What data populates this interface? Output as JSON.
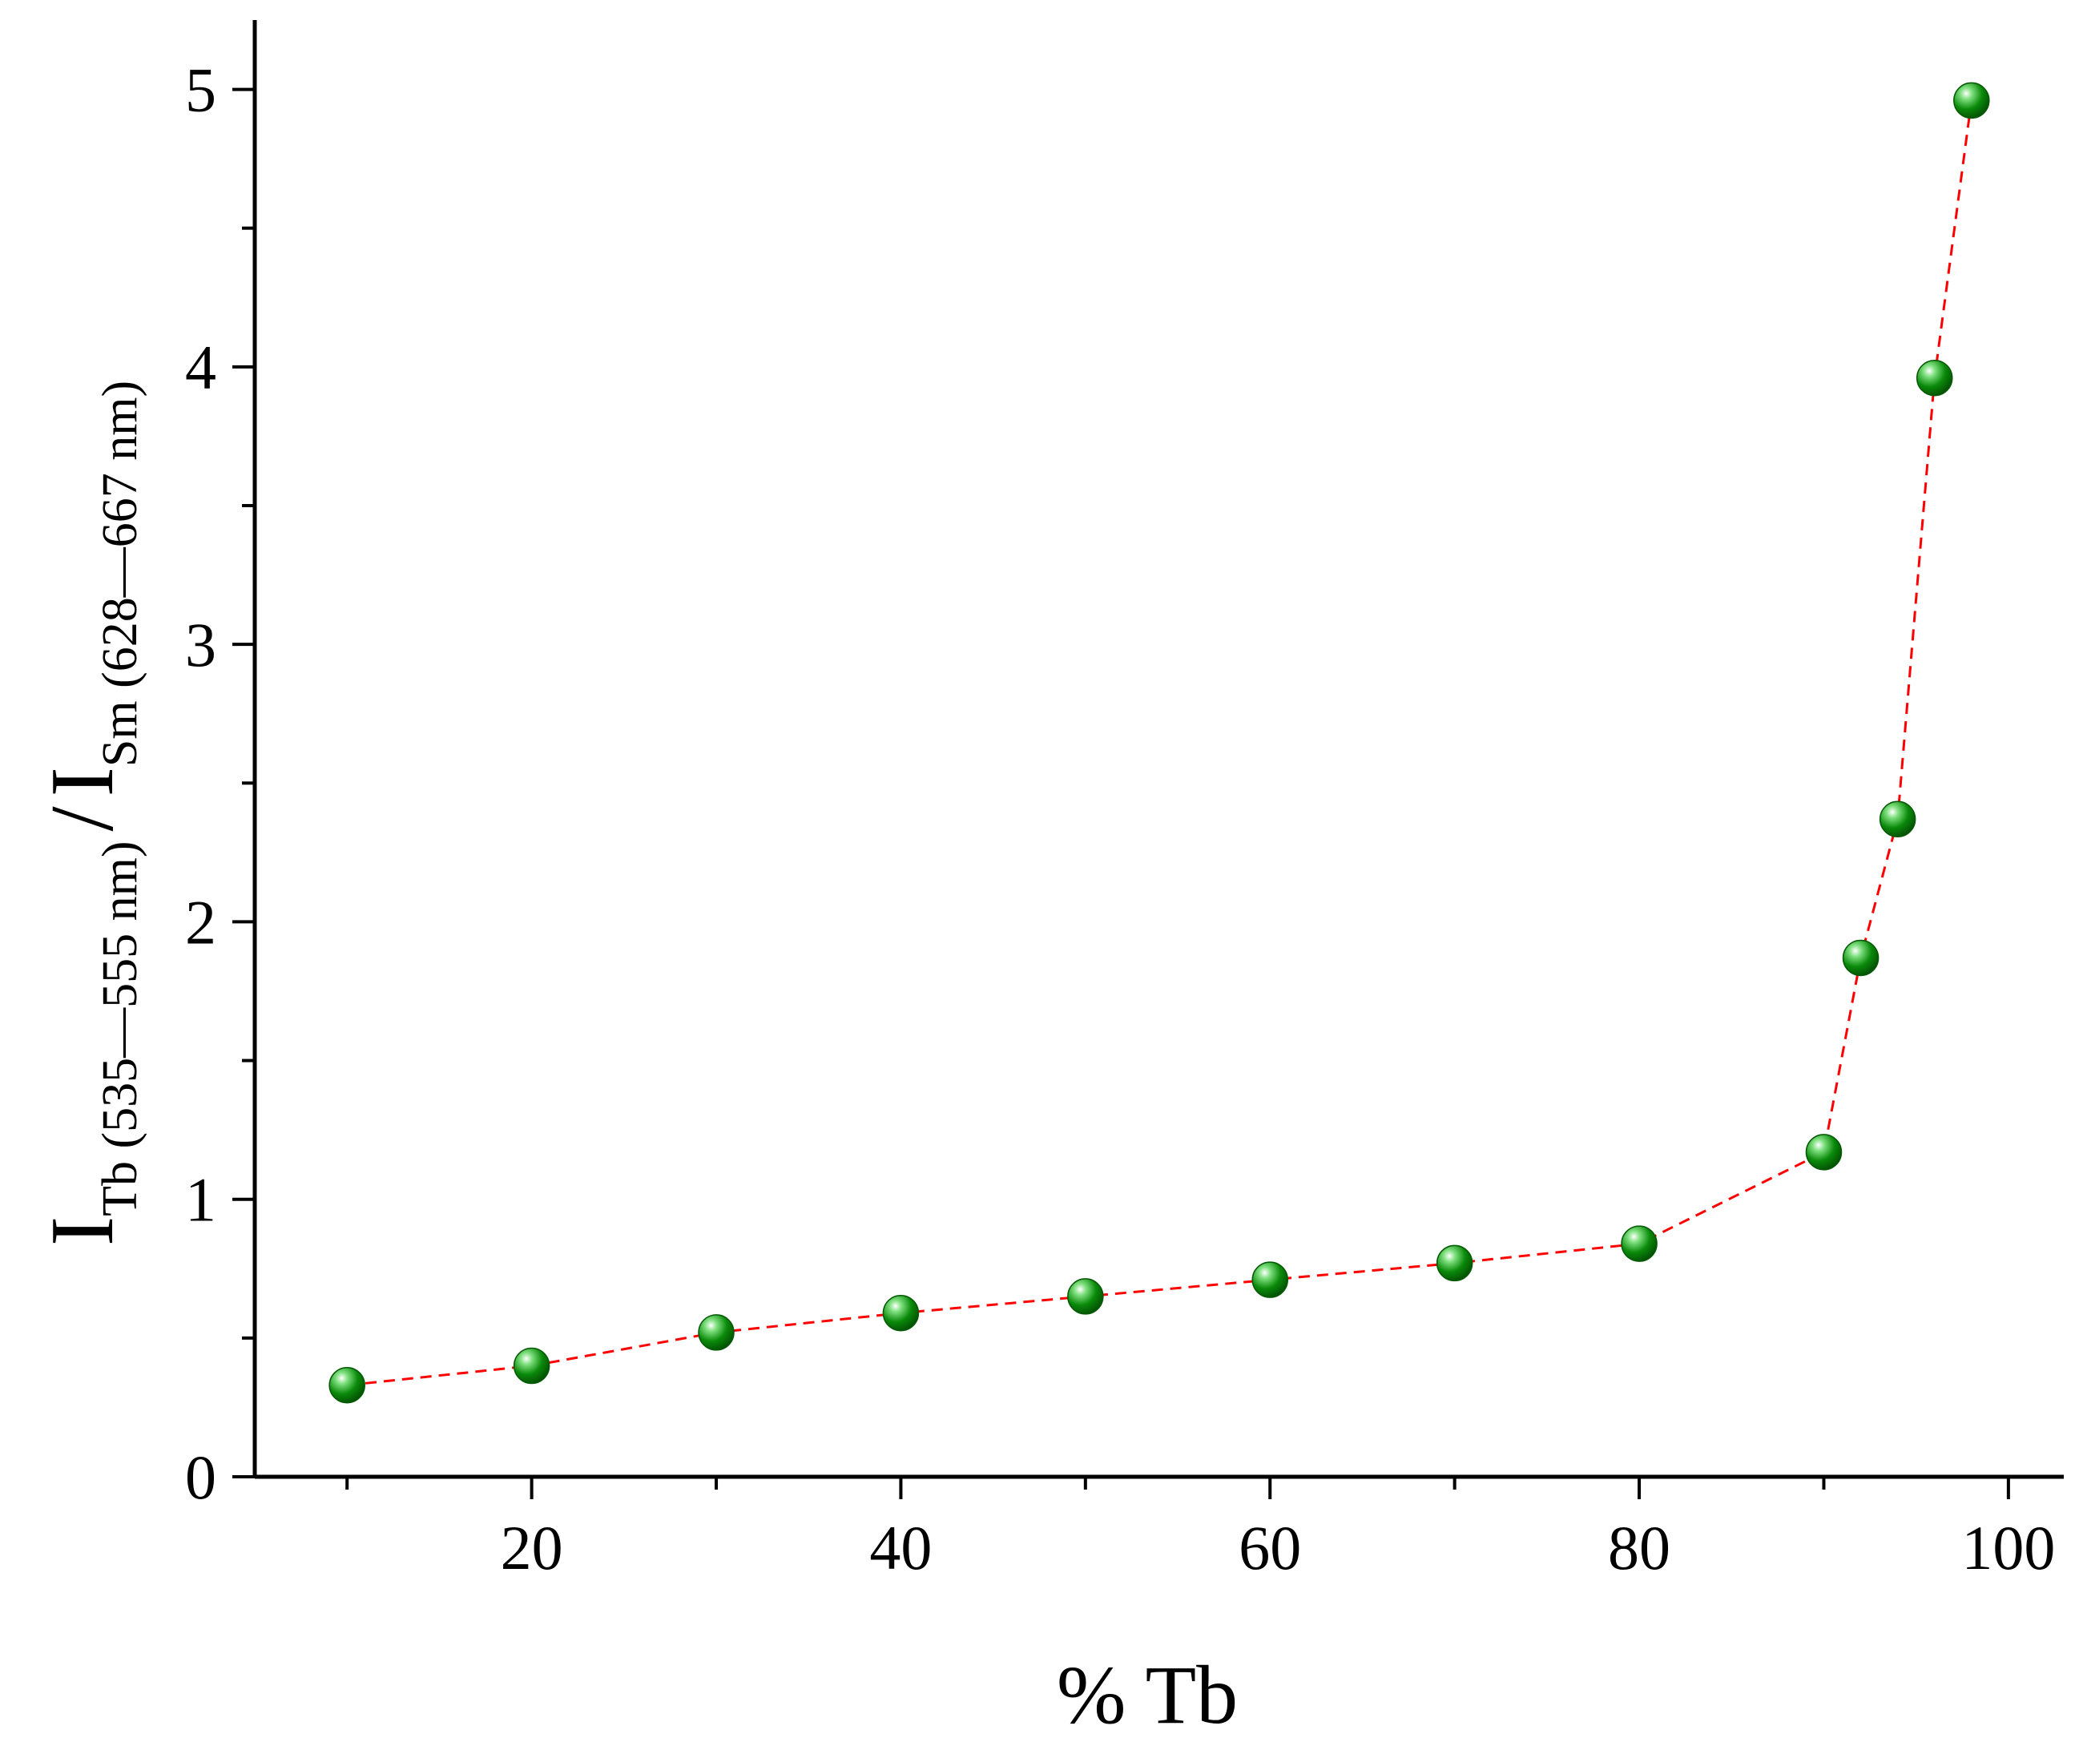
{
  "chart_data": {
    "type": "scatter",
    "title": "",
    "xlabel": "% Tb",
    "ylabel": {
      "main1": "I",
      "sub1": "Tb (535—555 nm)",
      "sep": "/",
      "main2": "I",
      "sub2": "Sm (628—667 nm)"
    },
    "xlim": [
      5,
      103
    ],
    "ylim": [
      0,
      5.25
    ],
    "x_ticks": [
      20,
      40,
      60,
      80,
      100
    ],
    "x_minor_ticks": [
      10,
      30,
      50,
      70,
      90
    ],
    "y_ticks": [
      0,
      1,
      2,
      3,
      4,
      5
    ],
    "y_minor_ticks": [
      0.5,
      1.5,
      2.5,
      3.5,
      4.5
    ],
    "grid": false,
    "legend": "none",
    "series": [
      {
        "marker_color": "#0a8a0a",
        "line_color": "#ff0000",
        "line_style": "dashed",
        "points": [
          {
            "x": 10,
            "y": 0.33
          },
          {
            "x": 20,
            "y": 0.4
          },
          {
            "x": 30,
            "y": 0.52
          },
          {
            "x": 40,
            "y": 0.59
          },
          {
            "x": 50,
            "y": 0.65
          },
          {
            "x": 60,
            "y": 0.71
          },
          {
            "x": 70,
            "y": 0.77
          },
          {
            "x": 80,
            "y": 0.84
          },
          {
            "x": 90,
            "y": 1.17
          },
          {
            "x": 92,
            "y": 1.87
          },
          {
            "x": 94,
            "y": 2.37
          },
          {
            "x": 96,
            "y": 3.96
          },
          {
            "x": 98,
            "y": 4.96
          }
        ]
      }
    ]
  }
}
